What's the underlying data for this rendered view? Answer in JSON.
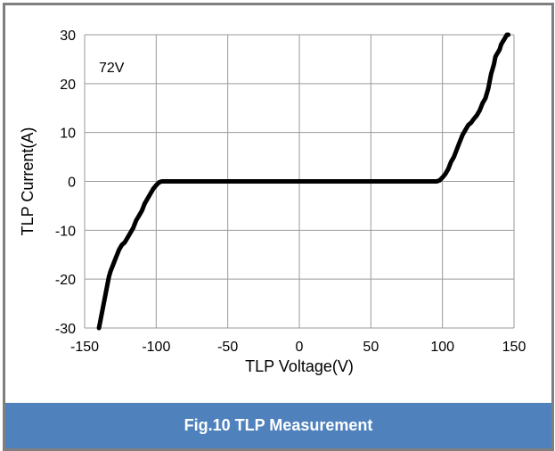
{
  "caption": "Fig.10 TLP Measurement",
  "chart_data": {
    "type": "line",
    "xlabel": "TLP Voltage(V)",
    "ylabel": "TLP Current(A)",
    "annotation": "72V",
    "xlim": [
      -150,
      150
    ],
    "ylim": [
      -30,
      30
    ],
    "xticks": [
      -150,
      -100,
      -50,
      0,
      50,
      100,
      150
    ],
    "yticks": [
      -30,
      -20,
      -10,
      0,
      10,
      20,
      30
    ],
    "grid": true,
    "line_color": "#000000",
    "series": [
      {
        "x": [
          -140,
          -139,
          -138,
          -137,
          -136,
          -135,
          -134,
          -133,
          -132,
          -130,
          -128,
          -126,
          -124,
          -122,
          -120,
          -118,
          -116,
          -114,
          -112,
          -110,
          -108,
          -106,
          -104,
          -102,
          -100,
          -98,
          -96,
          -90,
          -80,
          -60,
          -40,
          -20,
          0,
          20,
          40,
          60,
          80,
          90,
          96,
          98,
          100,
          102,
          104,
          106,
          108,
          110,
          112,
          114,
          116,
          118,
          120,
          122,
          124,
          126,
          128,
          130,
          132,
          133,
          134,
          135,
          136,
          137,
          138,
          139,
          140,
          141,
          142,
          143,
          144,
          145,
          146
        ],
        "y": [
          -30,
          -28.5,
          -27,
          -25.5,
          -24,
          -22.5,
          -21,
          -19.5,
          -18.5,
          -17,
          -15.5,
          -14,
          -13,
          -12.5,
          -11.5,
          -10.5,
          -9.5,
          -8,
          -7,
          -6,
          -4.5,
          -3.5,
          -2.5,
          -1.5,
          -0.8,
          -0.2,
          0,
          0,
          0,
          0,
          0,
          0,
          0,
          0,
          0,
          0,
          0,
          0,
          0,
          0.2,
          0.8,
          1.5,
          2.5,
          4,
          5,
          6.5,
          8,
          9.5,
          10.5,
          11.5,
          12,
          12.8,
          13.5,
          14.5,
          16,
          17,
          19,
          20.5,
          22,
          23,
          24,
          25.5,
          26,
          26.5,
          27,
          28,
          28.5,
          29,
          29.5,
          30,
          30
        ]
      }
    ]
  }
}
